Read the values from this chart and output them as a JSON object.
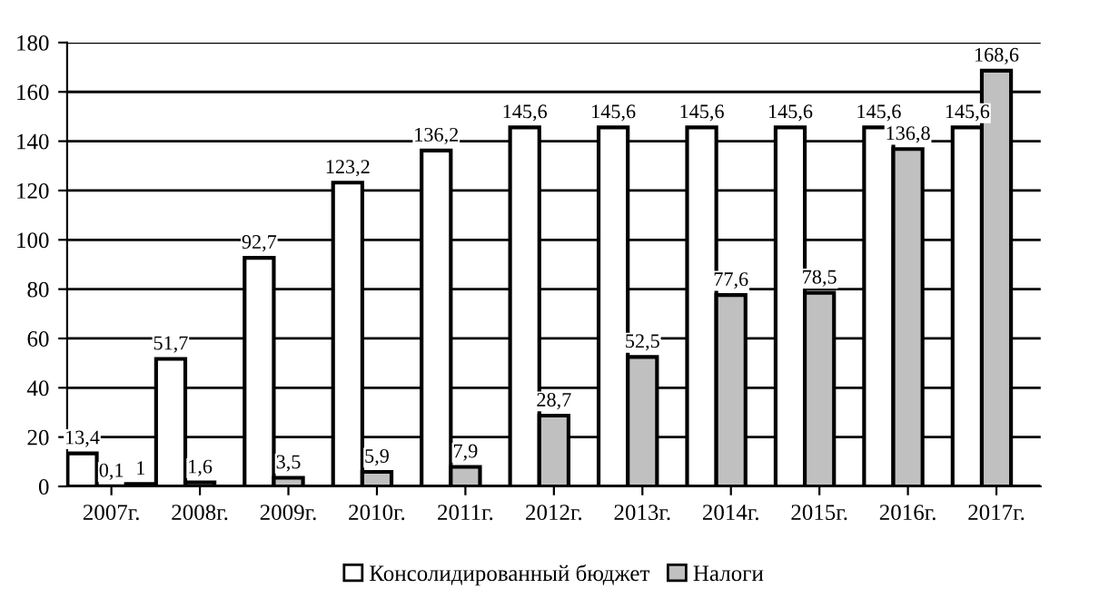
{
  "chart_data": {
    "type": "bar",
    "categories": [
      "2007г.",
      "2008г.",
      "2009г.",
      "2010г.",
      "2011г.",
      "2012г.",
      "2013г.",
      "2014г.",
      "2015г.",
      "2016г.",
      "2017г."
    ],
    "series": [
      {
        "name": "Консолидированный бюджет",
        "color": "#ffffff",
        "values": [
          13.4,
          51.7,
          92.7,
          123.2,
          136.2,
          145.6,
          145.6,
          145.6,
          145.6,
          145.6,
          145.6
        ],
        "value_labels": [
          "13,4",
          "51,7",
          "92,7",
          "123,2",
          "136,2",
          "145,6",
          "145,6",
          "145,6",
          "145,6",
          "145,6",
          "145,6"
        ]
      },
      {
        "name": "Налоги",
        "color": "#c0c0c0",
        "values": [
          0.1,
          1.6,
          3.5,
          5.9,
          7.9,
          28.7,
          52.5,
          77.6,
          78.5,
          136.8,
          168.6
        ],
        "value_labels": [
          "0,1",
          "1,6",
          "3,5",
          "5,9",
          "7,9",
          "28,7",
          "52,5",
          "77,6",
          "78,5",
          "136,8",
          "168,6"
        ]
      },
      {
        "color": "#000000",
        "values": [
          1,
          0,
          0,
          0,
          0,
          0,
          0,
          0,
          0,
          0,
          0
        ],
        "value_labels": [
          "1",
          null,
          null,
          null,
          null,
          null,
          null,
          null,
          null,
          null,
          null
        ]
      }
    ],
    "ylim": [
      0,
      180
    ],
    "yticks": [
      0,
      20,
      40,
      60,
      80,
      100,
      120,
      140,
      160,
      180
    ],
    "grid": "y",
    "legend": "bottom"
  }
}
